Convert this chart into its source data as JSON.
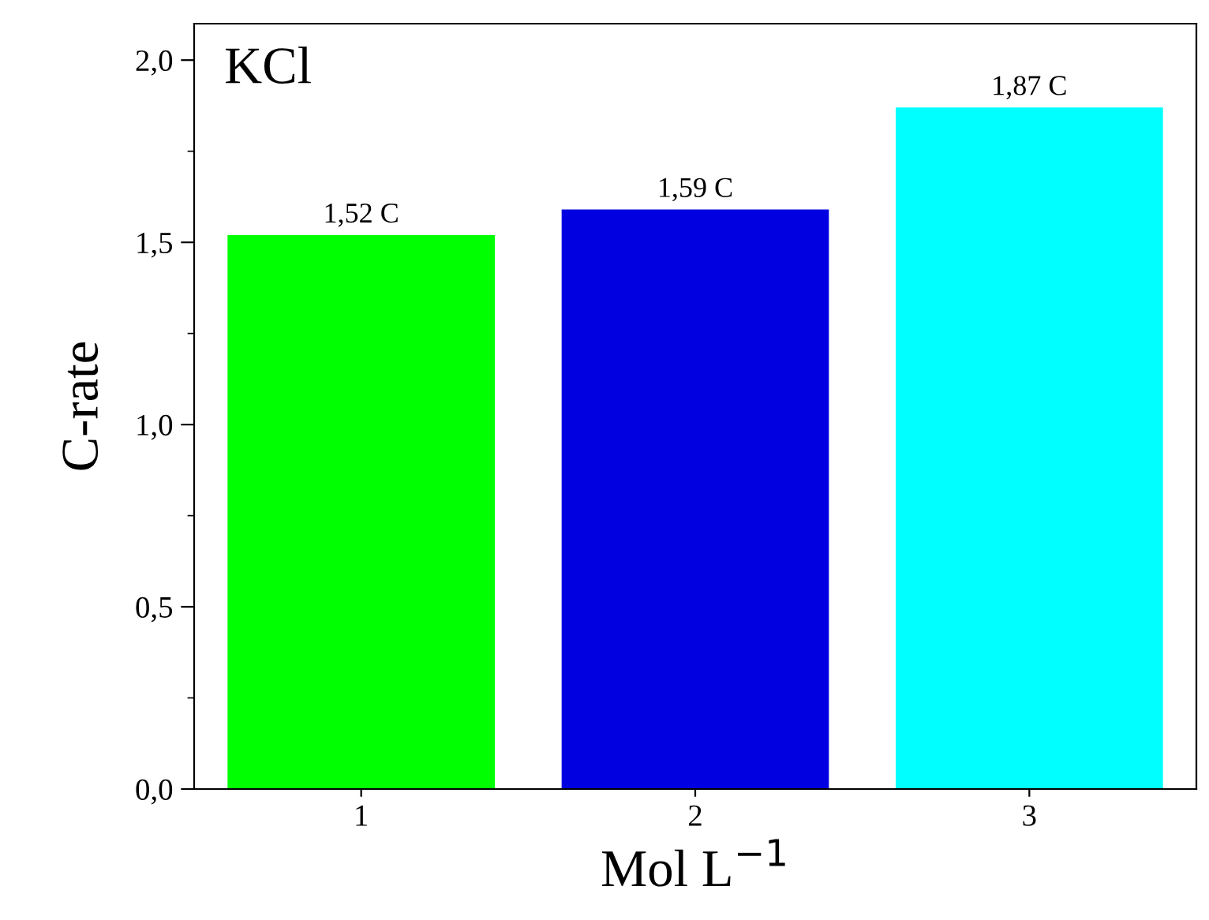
{
  "chart_data": {
    "type": "bar",
    "title": "KCl",
    "xlabel": "Mol L$^{−1}$",
    "ylabel": "C-rate",
    "categories": [
      "1",
      "2",
      "3"
    ],
    "values": [
      1.52,
      1.59,
      1.87
    ],
    "colors": [
      "#00ff00",
      "#0000e0",
      "#00ffff"
    ],
    "value_labels": [
      "1,52 C",
      "1,59 C",
      "1,87 C"
    ],
    "ylim": [
      0,
      2.1
    ],
    "yticks": [
      {
        "value": 0,
        "label": "0,0"
      },
      {
        "value": 0.5,
        "label": "0,5"
      },
      {
        "value": 1.0,
        "label": "1,0"
      },
      {
        "value": 1.5,
        "label": "1,5"
      },
      {
        "value": 2.0,
        "label": "2,0"
      }
    ],
    "grid": false,
    "legend": false
  }
}
